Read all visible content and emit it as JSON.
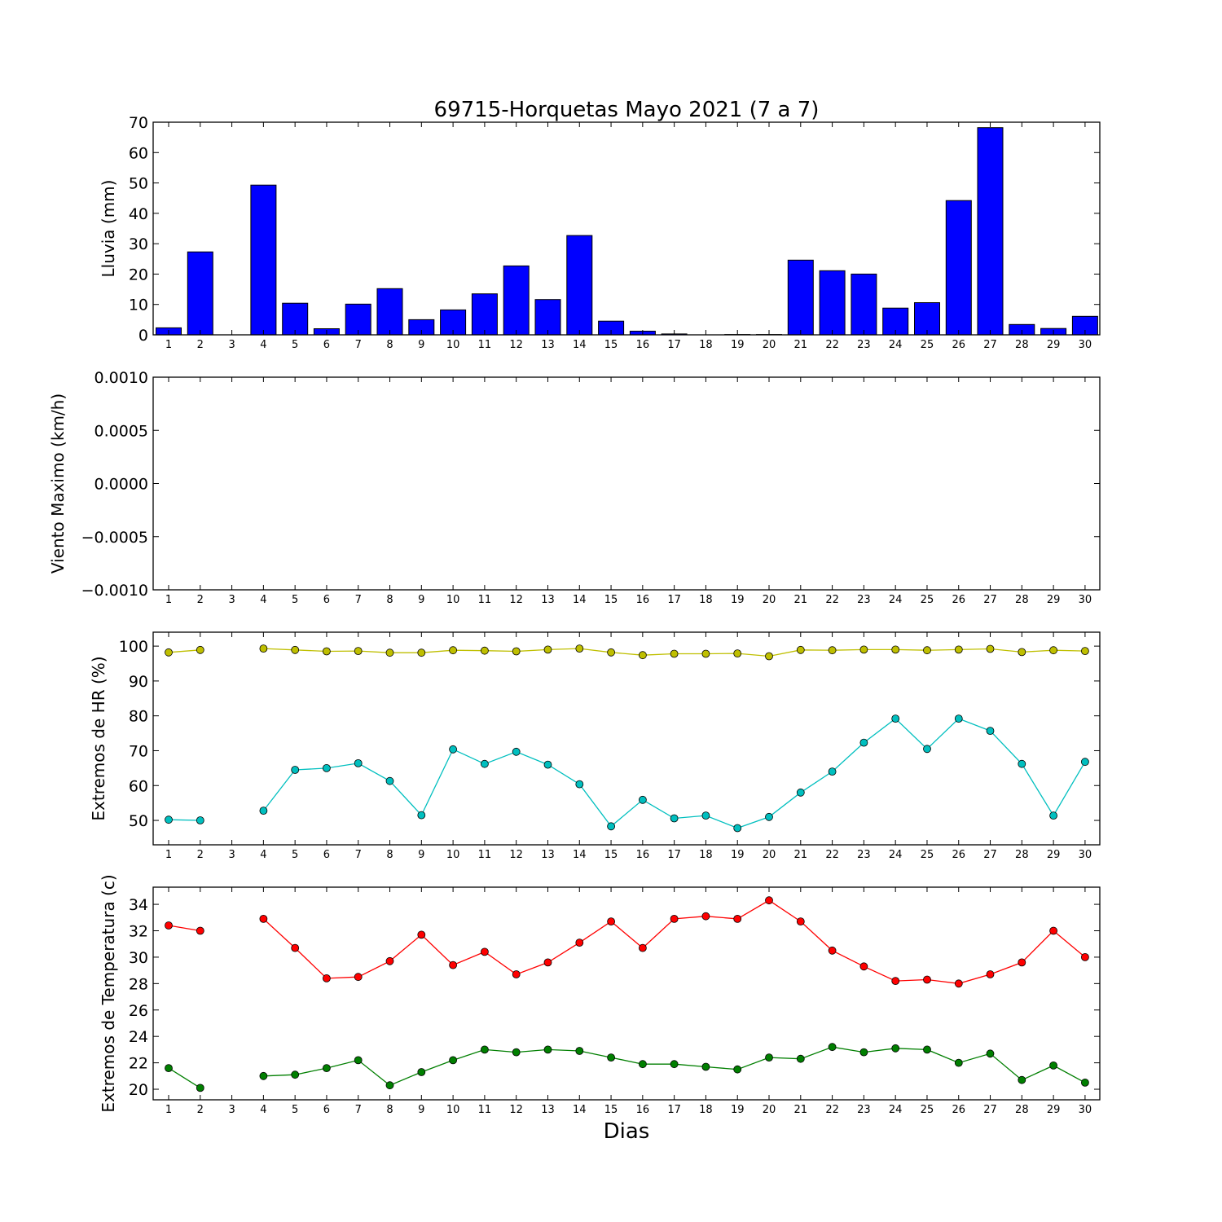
{
  "figure": {
    "title": "69715-Horquetas Mayo 2021  (7 a 7)",
    "xlabel": "Dias"
  },
  "chart_data": [
    {
      "type": "bar",
      "ylabel": "Lluvia (mm)",
      "ylim": [
        0,
        70
      ],
      "yticks": [
        0,
        10,
        20,
        30,
        40,
        50,
        60,
        70
      ],
      "categories": [
        1,
        2,
        3,
        4,
        5,
        6,
        7,
        8,
        9,
        10,
        11,
        12,
        13,
        14,
        15,
        16,
        17,
        18,
        19,
        20,
        21,
        22,
        23,
        24,
        25,
        26,
        27,
        28,
        29,
        30
      ],
      "series": [
        {
          "color": "#0000ff",
          "values": [
            2.3,
            27.3,
            0,
            49.3,
            10.4,
            2.0,
            10.1,
            15.2,
            5.0,
            8.2,
            13.5,
            22.7,
            11.6,
            32.7,
            4.5,
            1.2,
            0.3,
            0,
            0.1,
            0.1,
            24.6,
            21.1,
            20.0,
            8.8,
            10.6,
            44.2,
            68.2,
            3.4,
            2.1,
            6.1
          ]
        }
      ]
    },
    {
      "type": "line",
      "ylabel": "Viento Maximo (km/h)",
      "ylim": [
        -0.001,
        0.001
      ],
      "yticks": [
        "0.0010",
        "0.0005",
        "0.0000",
        "−0.0005",
        "−0.0010"
      ],
      "categories": [
        1,
        2,
        3,
        4,
        5,
        6,
        7,
        8,
        9,
        10,
        11,
        12,
        13,
        14,
        15,
        16,
        17,
        18,
        19,
        20,
        21,
        22,
        23,
        24,
        25,
        26,
        27,
        28,
        29,
        30
      ],
      "series": []
    },
    {
      "type": "line",
      "ylabel": "Extremos de HR (%)",
      "ylim": [
        43,
        104
      ],
      "yticks": [
        50,
        60,
        70,
        80,
        90,
        100
      ],
      "categories": [
        1,
        2,
        3,
        4,
        5,
        6,
        7,
        8,
        9,
        10,
        11,
        12,
        13,
        14,
        15,
        16,
        17,
        18,
        19,
        20,
        21,
        22,
        23,
        24,
        25,
        26,
        27,
        28,
        29,
        30
      ],
      "series": [
        {
          "color": "#bfbf00",
          "values": [
            98.2,
            98.9,
            null,
            99.3,
            98.9,
            98.5,
            98.6,
            98.1,
            98.1,
            98.8,
            98.7,
            98.5,
            99.0,
            99.3,
            98.2,
            97.4,
            97.8,
            97.8,
            97.9,
            97.1,
            98.9,
            98.8,
            99.0,
            99.0,
            98.8,
            99.0,
            99.2,
            98.3,
            98.8,
            98.6
          ]
        },
        {
          "color": "#00bfbf",
          "values": [
            50.2,
            50.0,
            null,
            52.8,
            64.5,
            65.0,
            66.4,
            61.3,
            51.5,
            70.4,
            66.2,
            69.7,
            66.0,
            60.4,
            48.3,
            55.9,
            50.6,
            51.4,
            47.8,
            51.0,
            58.0,
            64.0,
            72.3,
            79.2,
            70.5,
            79.2,
            75.7,
            66.2,
            51.4,
            66.8
          ]
        }
      ]
    },
    {
      "type": "line",
      "ylabel": "Extremos de Temperatura (c)",
      "ylim": [
        19.2,
        35.3
      ],
      "yticks": [
        20,
        22,
        24,
        26,
        28,
        30,
        32,
        34
      ],
      "categories": [
        1,
        2,
        3,
        4,
        5,
        6,
        7,
        8,
        9,
        10,
        11,
        12,
        13,
        14,
        15,
        16,
        17,
        18,
        19,
        20,
        21,
        22,
        23,
        24,
        25,
        26,
        27,
        28,
        29,
        30
      ],
      "series": [
        {
          "color": "#ff0000",
          "values": [
            32.4,
            32.0,
            null,
            32.9,
            30.7,
            28.4,
            28.5,
            29.7,
            31.7,
            29.4,
            30.4,
            28.7,
            29.6,
            31.1,
            32.7,
            30.7,
            32.9,
            33.1,
            32.9,
            34.3,
            32.7,
            30.5,
            29.3,
            28.2,
            28.3,
            28.0,
            28.7,
            29.6,
            32.0,
            30.0
          ]
        },
        {
          "color": "#007f00",
          "values": [
            21.6,
            20.1,
            null,
            21.0,
            21.1,
            21.6,
            22.2,
            20.3,
            21.3,
            22.2,
            23.0,
            22.8,
            23.0,
            22.9,
            22.4,
            21.9,
            21.9,
            21.7,
            21.5,
            22.4,
            22.3,
            23.2,
            22.8,
            23.1,
            23.0,
            22.0,
            22.7,
            20.7,
            21.8,
            20.5
          ]
        }
      ]
    }
  ]
}
